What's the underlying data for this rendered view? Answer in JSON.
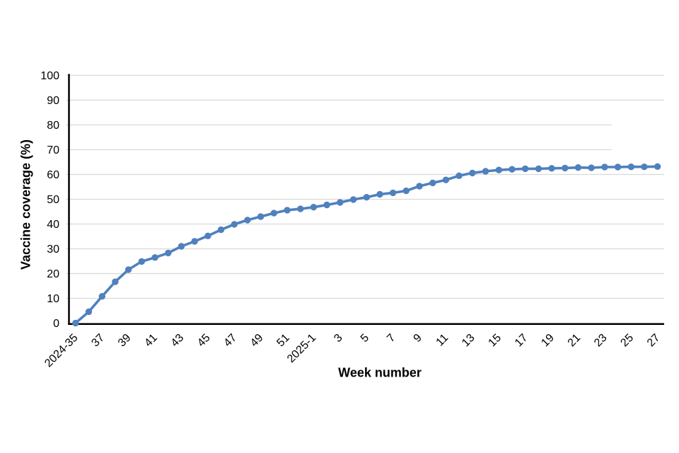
{
  "chart_data": {
    "type": "line",
    "title": "",
    "xlabel": "Week number",
    "ylabel": "Vaccine coverage (%)",
    "ylim": [
      0,
      100
    ],
    "grid": "horizontal",
    "legend_position": "none",
    "y_ticks": [
      0,
      10,
      20,
      30,
      40,
      50,
      60,
      70,
      80,
      90,
      100
    ],
    "y_tick_labels": [
      "0",
      "10",
      "20",
      "30",
      "40",
      "50",
      "60",
      "70",
      "80",
      "90",
      "100"
    ],
    "x_tick_labels": [
      "2024-35",
      "37",
      "39",
      "41",
      "43",
      "45",
      "47",
      "49",
      "51",
      "2025-1",
      "3",
      "5",
      "7",
      "9",
      "11",
      "13",
      "15",
      "17",
      "19",
      "21",
      "23",
      "25",
      "27"
    ],
    "x_tick_every": 2,
    "categories": [
      "2024-35",
      "2024-36",
      "2024-37",
      "2024-38",
      "2024-39",
      "2024-40",
      "2024-41",
      "2024-42",
      "2024-43",
      "2024-44",
      "2024-45",
      "2024-46",
      "2024-47",
      "2024-48",
      "2024-49",
      "2024-50",
      "2024-51",
      "2024-52",
      "2025-1",
      "2025-2",
      "2025-3",
      "2025-4",
      "2025-5",
      "2025-6",
      "2025-7",
      "2025-8",
      "2025-9",
      "2025-10",
      "2025-11",
      "2025-12",
      "2025-13",
      "2025-14",
      "2025-15",
      "2025-16",
      "2025-17",
      "2025-18",
      "2025-19",
      "2025-20",
      "2025-21",
      "2025-22",
      "2025-23",
      "2025-24",
      "2025-25",
      "2025-26",
      "2025-27"
    ],
    "series": [
      {
        "name": "Vaccine coverage",
        "color": "#4f81bd",
        "values": [
          0,
          4.6,
          10.8,
          16.7,
          21.6,
          24.9,
          26.5,
          28.3,
          31.0,
          33.0,
          35.2,
          37.7,
          39.9,
          41.6,
          43.0,
          44.4,
          45.6,
          46.1,
          46.8,
          47.7,
          48.7,
          49.9,
          50.8,
          52.0,
          52.6,
          53.4,
          55.3,
          56.6,
          57.8,
          59.5,
          60.6,
          61.3,
          61.8,
          62.1,
          62.3,
          62.3,
          62.5,
          62.6,
          62.8,
          62.7,
          63.0,
          63.0,
          63.1,
          63.1,
          63.2
        ]
      }
    ],
    "colors": {
      "gridline": "#d9d9d9",
      "axis": "#000000",
      "tick_label": "#000000"
    },
    "truncated_gridlines": {
      "levels": [
        70,
        80
      ],
      "end_fraction": 0.912
    }
  }
}
